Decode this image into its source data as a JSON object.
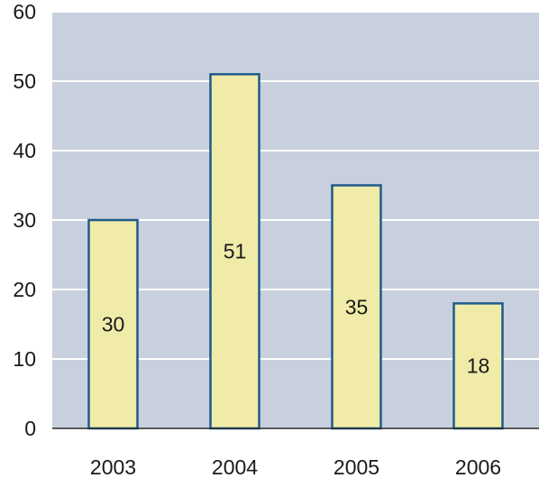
{
  "chart_data": {
    "type": "bar",
    "title": "",
    "xlabel": "",
    "ylabel": "",
    "categories": [
      "2003",
      "2004",
      "2005",
      "2006"
    ],
    "values": [
      30,
      51,
      35,
      18
    ],
    "data_labels": [
      "30",
      "51",
      "35",
      "18"
    ],
    "ylim": [
      0,
      60
    ],
    "yticks": [
      0,
      10,
      20,
      30,
      40,
      50,
      60
    ],
    "grid": true,
    "legend": "none",
    "colors": {
      "plot_background": "#c8d0de",
      "gridline": "#ffffff",
      "bar_fill": "#f0eba8",
      "bar_stroke": "#1f5a8a",
      "axis": "#2a2a2a"
    }
  }
}
